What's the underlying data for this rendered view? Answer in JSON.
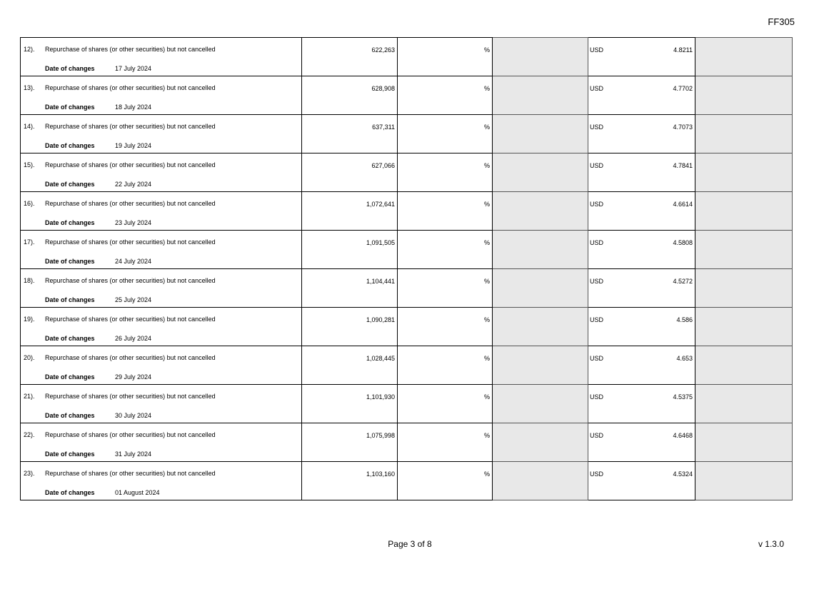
{
  "form_code": "FF305",
  "date_label": "Date of changes",
  "percent_symbol": "%",
  "currency": "USD",
  "rows": [
    {
      "no": "12).",
      "description": "Repurchase of shares (or other securities) but not cancelled",
      "date": "17 July 2024",
      "shares": "622,263",
      "price": "4.8211"
    },
    {
      "no": "13).",
      "description": "Repurchase of shares (or other securities) but not cancelled",
      "date": "18 July 2024",
      "shares": "628,908",
      "price": "4.7702"
    },
    {
      "no": "14).",
      "description": "Repurchase of shares (or other securities) but not cancelled",
      "date": "19 July 2024",
      "shares": "637,311",
      "price": "4.7073"
    },
    {
      "no": "15).",
      "description": "Repurchase of shares (or other securities) but not cancelled",
      "date": "22 July 2024",
      "shares": "627,066",
      "price": "4.7841"
    },
    {
      "no": "16).",
      "description": "Repurchase of shares (or other securities) but not cancelled",
      "date": "23 July 2024",
      "shares": "1,072,641",
      "price": "4.6614"
    },
    {
      "no": "17).",
      "description": "Repurchase of shares (or other securities) but not cancelled",
      "date": "24 July 2024",
      "shares": "1,091,505",
      "price": "4.5808"
    },
    {
      "no": "18).",
      "description": "Repurchase of shares (or other securities) but not cancelled",
      "date": "25 July 2024",
      "shares": "1,104,441",
      "price": "4.5272"
    },
    {
      "no": "19).",
      "description": "Repurchase of shares (or other securities) but not cancelled",
      "date": "26 July 2024",
      "shares": "1,090,281",
      "price": "4.586"
    },
    {
      "no": "20).",
      "description": "Repurchase of shares (or other securities) but not cancelled",
      "date": "29 July 2024",
      "shares": "1,028,445",
      "price": "4.653"
    },
    {
      "no": "21).",
      "description": "Repurchase of shares (or other securities) but not cancelled",
      "date": "30 July 2024",
      "shares": "1,101,930",
      "price": "4.5375"
    },
    {
      "no": "22).",
      "description": "Repurchase of shares (or other securities) but not cancelled",
      "date": "31 July 2024",
      "shares": "1,075,998",
      "price": "4.6468"
    },
    {
      "no": "23).",
      "description": "Repurchase of shares (or other securities) but not cancelled",
      "date": "01 August 2024",
      "shares": "1,103,160",
      "price": "4.5324"
    }
  ],
  "footer": {
    "page": "Page 3 of 8",
    "version": "v 1.3.0"
  }
}
